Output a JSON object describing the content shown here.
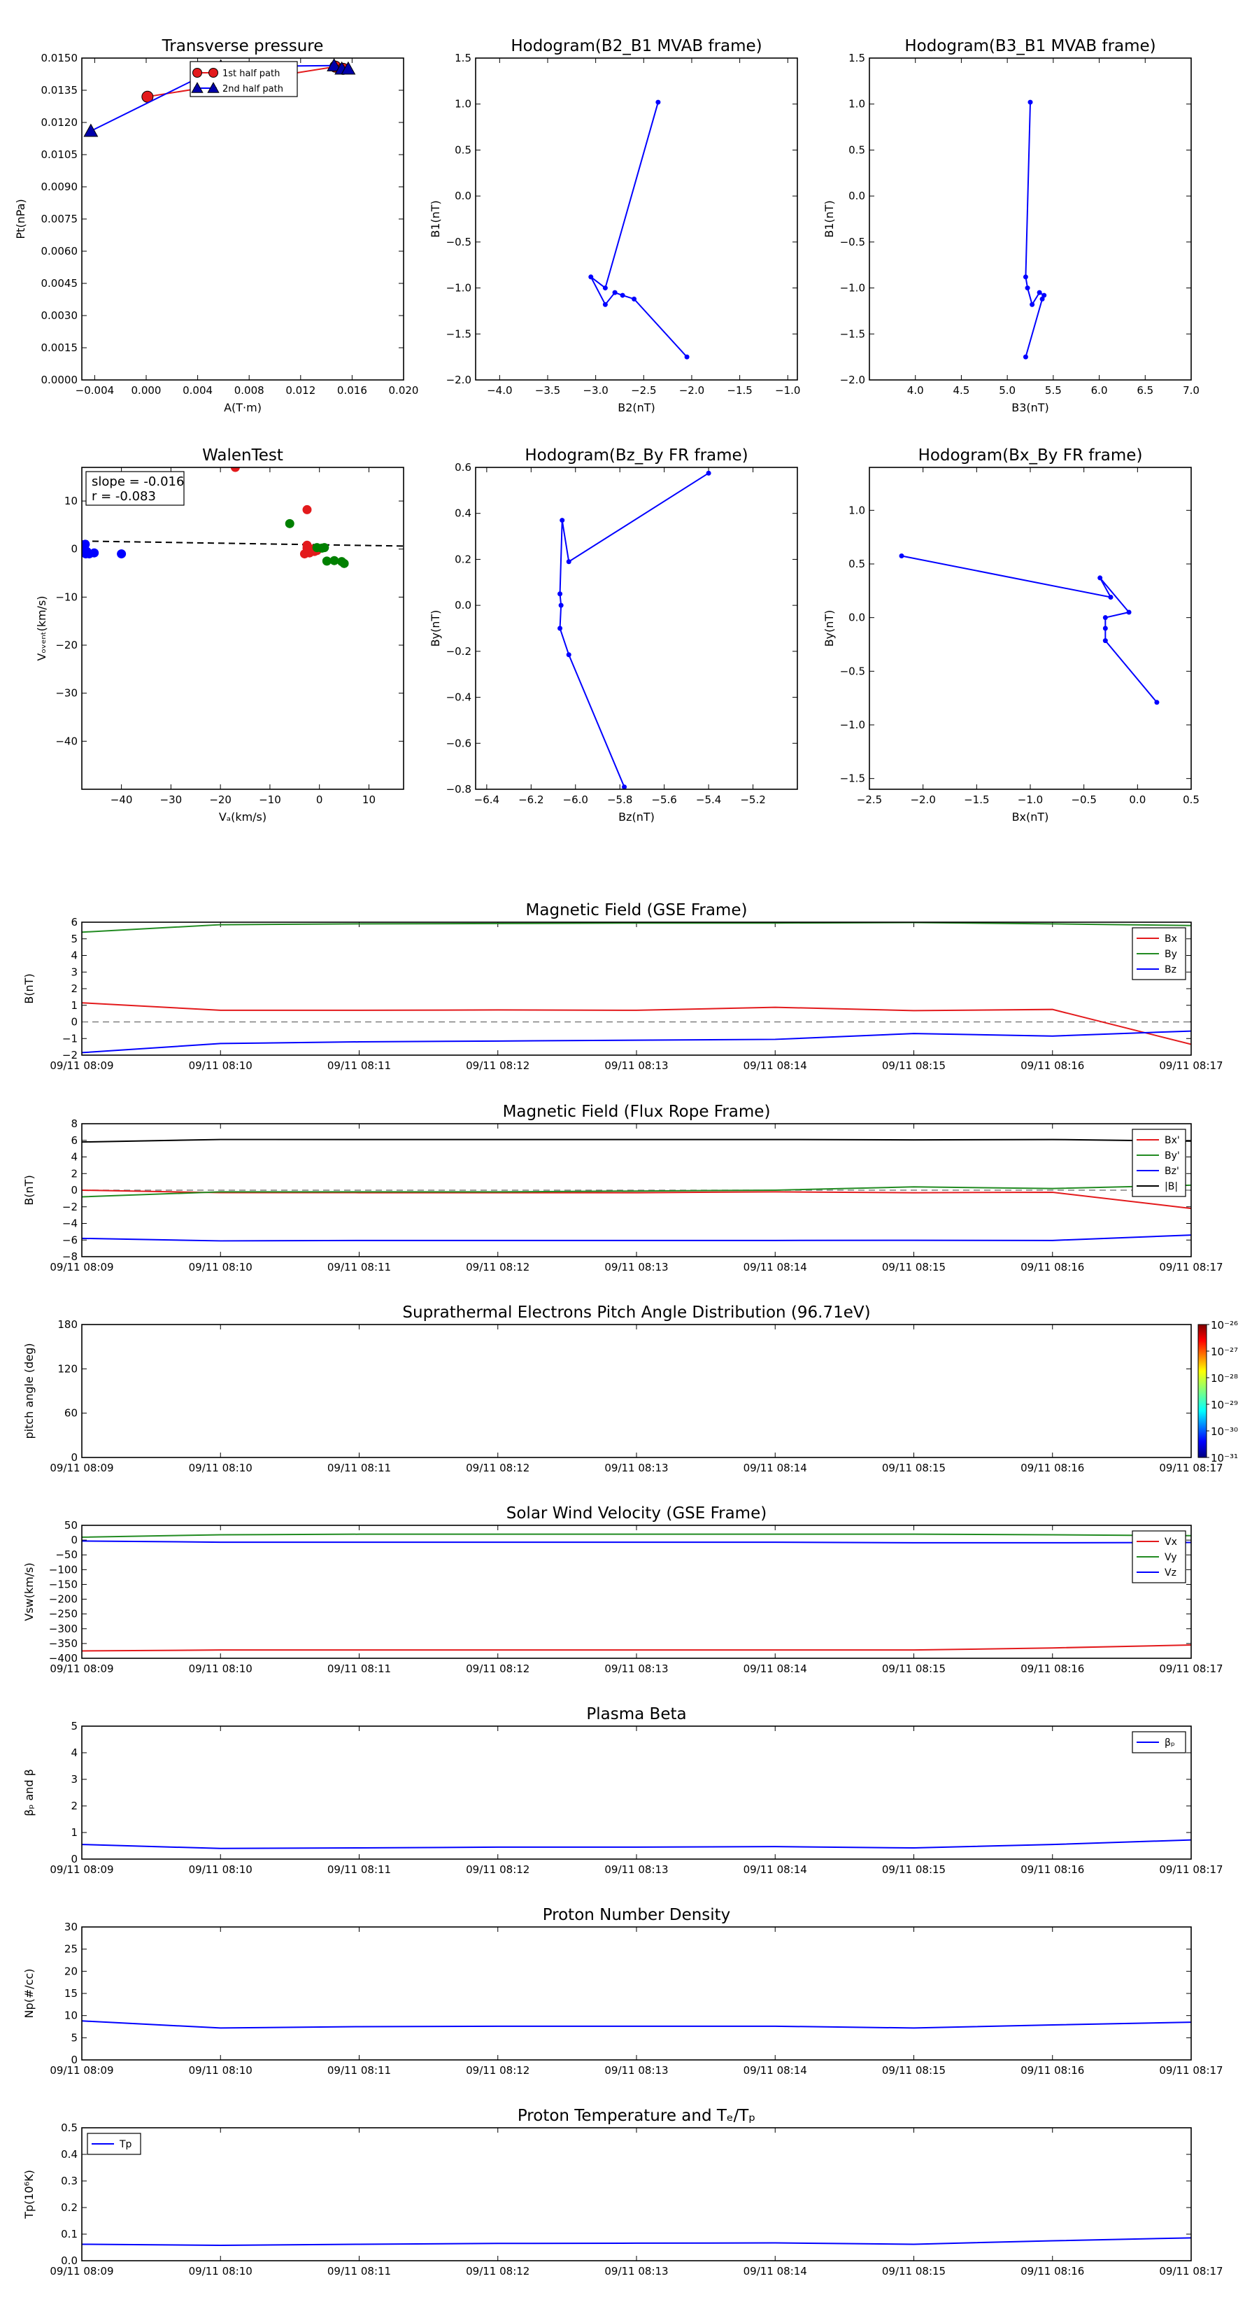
{
  "time_ticks": [
    "09/11 08:09",
    "09/11 08:10",
    "09/11 08:11",
    "09/11 08:12",
    "09/11 08:13",
    "09/11 08:14",
    "09/11 08:15",
    "09/11 08:16",
    "09/11 08:17"
  ],
  "colors": {
    "red": "#e31a1c",
    "green": "#228b22",
    "blue": "#0000ff",
    "black": "#000000",
    "darkgreen": "#008000",
    "gray": "#808080"
  },
  "chart_data": [
    {
      "type": "line",
      "title": "Transverse pressure",
      "xlabel": "A(T·m)",
      "ylabel": "Pt(nPa)",
      "xlim": [
        -0.005,
        0.02
      ],
      "ylim": [
        0.0,
        0.015
      ],
      "xticks": [
        -0.004,
        0.0,
        0.004,
        0.008,
        0.012,
        0.016,
        0.02
      ],
      "xticklabels": [
        "−0.004",
        "0.000",
        "0.004",
        "0.008",
        "0.012",
        "0.016",
        "0.020"
      ],
      "yticks": [
        0.0,
        0.0015,
        0.003,
        0.0045,
        0.006,
        0.0075,
        0.009,
        0.0105,
        0.012,
        0.0135,
        0.015
      ],
      "yticklabels": [
        "0.0000",
        "0.0015",
        "0.0030",
        "0.0045",
        "0.0060",
        "0.0075",
        "0.0090",
        "0.0105",
        "0.0120",
        "0.0135",
        "0.0150"
      ],
      "legend": "top-center",
      "series": [
        {
          "name": "1st half path",
          "color": "#e31a1c",
          "line": "#e31a1c",
          "marker": "circle",
          "x": [
            0.0001,
            0.0147,
            0.0153
          ],
          "y": [
            0.0132,
            0.0146,
            0.0145
          ]
        },
        {
          "name": "2nd half path",
          "color": "#0000aa",
          "line": "#0000ff",
          "marker": "triangle",
          "x": [
            -0.0043,
            0.0058,
            0.0146,
            0.0152,
            0.0157
          ],
          "y": [
            0.0116,
            0.0146,
            0.01465,
            0.0145,
            0.0145
          ]
        }
      ]
    },
    {
      "type": "line",
      "title": "Hodogram(B2_B1 MVAB frame)",
      "xlabel": "B2(nT)",
      "ylabel": "B1(nT)",
      "xlim": [
        -4.25,
        -0.9
      ],
      "ylim": [
        -2.0,
        1.5
      ],
      "xticks": [
        -4.0,
        -3.5,
        -3.0,
        -2.5,
        -2.0,
        -1.5,
        -1.0
      ],
      "xticklabels": [
        "−4.0",
        "−3.5",
        "−3.0",
        "−2.5",
        "−2.0",
        "−1.5",
        "−1.0"
      ],
      "yticks": [
        -2.0,
        -1.5,
        -1.0,
        -0.5,
        0.0,
        0.5,
        1.0,
        1.5
      ],
      "yticklabels": [
        "−2.0",
        "−1.5",
        "−1.0",
        "−0.5",
        "0.0",
        "0.5",
        "1.0",
        "1.5"
      ],
      "series": [
        {
          "x": [
            -2.35,
            -2.9,
            -3.05,
            -2.9,
            -2.8,
            -2.72,
            -2.6,
            -2.05
          ],
          "y": [
            1.02,
            -1.0,
            -0.88,
            -1.18,
            -1.05,
            -1.08,
            -1.12,
            -1.75
          ],
          "color": "#0000ff"
        }
      ]
    },
    {
      "type": "line",
      "title": "Hodogram(B3_B1 MVAB frame)",
      "xlabel": "B3(nT)",
      "ylabel": "B1(nT)",
      "xlim": [
        3.5,
        7.0
      ],
      "ylim": [
        -2.0,
        1.5
      ],
      "xticks": [
        4.0,
        4.5,
        5.0,
        5.5,
        6.0,
        6.5,
        7.0
      ],
      "xticklabels": [
        "4.0",
        "4.5",
        "5.0",
        "5.5",
        "6.0",
        "6.5",
        "7.0"
      ],
      "yticks": [
        -2.0,
        -1.5,
        -1.0,
        -0.5,
        0.0,
        0.5,
        1.0,
        1.5
      ],
      "yticklabels": [
        "−2.0",
        "−1.5",
        "−1.0",
        "−0.5",
        "0.0",
        "0.5",
        "1.0",
        "1.5"
      ],
      "series": [
        {
          "x": [
            5.25,
            5.2,
            5.22,
            5.27,
            5.35,
            5.4,
            5.38,
            5.2
          ],
          "y": [
            1.02,
            -0.88,
            -1.0,
            -1.18,
            -1.05,
            -1.08,
            -1.12,
            -1.75
          ],
          "color": "#0000ff"
        }
      ]
    },
    {
      "type": "scatter",
      "title": "WalenTest",
      "xlabel": "Vₐ(km/s)",
      "ylabel": "Vₒᵥₑₙₜ(km/s)",
      "xlim": [
        -48,
        17
      ],
      "ylim": [
        -50,
        17
      ],
      "xticks": [
        -40,
        -30,
        -20,
        -10,
        0,
        10
      ],
      "xticklabels": [
        "−40",
        "−30",
        "−20",
        "−10",
        "0",
        "10"
      ],
      "yticks": [
        -40,
        -30,
        -20,
        -10,
        0,
        10
      ],
      "yticklabels": [
        "−40",
        "−30",
        "−20",
        "−10",
        "0",
        "10"
      ],
      "annotation": [
        "slope = -0.016",
        "r = -0.083"
      ],
      "fit": {
        "slope": -0.016,
        "intercept": 0.9,
        "color": "#000000"
      },
      "series": [
        {
          "color": "#e31a1c",
          "x": [
            -2.5,
            -2.5,
            -1.5,
            -1,
            -0.5,
            -2,
            -3,
            -2.5,
            -17
          ],
          "y": [
            8.2,
            0.8,
            0.0,
            -0.5,
            -0.3,
            -0.8,
            -1.0,
            0.2,
            17
          ]
        },
        {
          "color": "#008000",
          "x": [
            -6,
            -0.5,
            0.5,
            1,
            1.5,
            3,
            4.5,
            5
          ],
          "y": [
            5.3,
            0.3,
            0.2,
            0.3,
            -2.5,
            -2.4,
            -2.6,
            -3.0
          ]
        },
        {
          "color": "#0000ff",
          "x": [
            -47.5,
            -47.3,
            -47.2,
            -47,
            -46.5,
            -45.5,
            -40
          ],
          "y": [
            0.5,
            1.0,
            -1.0,
            -0.5,
            -1.0,
            -0.8,
            -1.0
          ]
        }
      ]
    },
    {
      "type": "line",
      "title": "Hodogram(Bz_By FR frame)",
      "xlabel": "Bz(nT)",
      "ylabel": "By(nT)",
      "xlim": [
        -6.45,
        -5.0
      ],
      "ylim": [
        -0.8,
        0.6
      ],
      "xticks": [
        -6.4,
        -6.2,
        -6.0,
        -5.8,
        -5.6,
        -5.4,
        -5.2
      ],
      "xticklabels": [
        "−6.4",
        "−6.2",
        "−6.0",
        "−5.8",
        "−5.6",
        "−5.4",
        "−5.2"
      ],
      "yticks": [
        -0.8,
        -0.6,
        -0.4,
        -0.2,
        0.0,
        0.2,
        0.4,
        0.6
      ],
      "yticklabels": [
        "−0.8",
        "−0.6",
        "−0.4",
        "−0.2",
        "0.0",
        "0.2",
        "0.4",
        "0.6"
      ],
      "series": [
        {
          "x": [
            -5.4,
            -6.03,
            -6.06,
            -6.07,
            -6.065,
            -6.07,
            -6.03,
            -5.78
          ],
          "y": [
            0.575,
            0.19,
            0.37,
            0.05,
            0.0,
            -0.1,
            -0.215,
            -0.79
          ],
          "color": "#0000ff"
        }
      ]
    },
    {
      "type": "line",
      "title": "Hodogram(Bx_By FR frame)",
      "xlabel": "Bx(nT)",
      "ylabel": "By(nT)",
      "xlim": [
        -2.5,
        0.5
      ],
      "ylim": [
        -1.6,
        1.4
      ],
      "xticks": [
        -2.5,
        -2.0,
        -1.5,
        -1.0,
        -0.5,
        0.0,
        0.5
      ],
      "xticklabels": [
        "−2.5",
        "−2.0",
        "−1.5",
        "−1.0",
        "−0.5",
        "0.0",
        "0.5"
      ],
      "yticks": [
        -1.5,
        -1.0,
        -0.5,
        0.0,
        0.5,
        1.0
      ],
      "yticklabels": [
        "−1.5",
        "−1.0",
        "−0.5",
        "0.0",
        "0.5",
        "1.0"
      ],
      "series": [
        {
          "x": [
            -2.2,
            -0.25,
            -0.35,
            -0.08,
            -0.3,
            -0.3,
            -0.3,
            0.18
          ],
          "y": [
            0.575,
            0.19,
            0.37,
            0.05,
            0.0,
            -0.1,
            -0.215,
            -0.79
          ],
          "color": "#0000ff"
        }
      ]
    },
    {
      "type": "line",
      "title": "Magnetic Field (GSE Frame)",
      "ylabel": "B(nT)",
      "ylim": [
        -2,
        6
      ],
      "yticks": [
        -2,
        -1,
        0,
        1,
        2,
        3,
        4,
        5,
        6
      ],
      "yticklabels": [
        "−2",
        "−1",
        "0",
        "1",
        "2",
        "3",
        "4",
        "5",
        "6"
      ],
      "zero_line": true,
      "legend": "top-right",
      "series": [
        {
          "name": "Bx",
          "color": "#e31a1c",
          "x": [
            0,
            1,
            2,
            3,
            4,
            5,
            6,
            7,
            8
          ],
          "y": [
            1.15,
            0.7,
            0.7,
            0.72,
            0.7,
            0.88,
            0.68,
            0.75,
            -1.35
          ]
        },
        {
          "name": "By",
          "color": "#228b22",
          "x": [
            0,
            1,
            2,
            3,
            4,
            5,
            6,
            7,
            8
          ],
          "y": [
            5.4,
            5.85,
            5.9,
            5.92,
            5.95,
            5.95,
            5.98,
            5.9,
            5.8
          ]
        },
        {
          "name": "Bz",
          "color": "#0000ff",
          "x": [
            0,
            1,
            2,
            3,
            4,
            5,
            6,
            7,
            8
          ],
          "y": [
            -1.85,
            -1.3,
            -1.2,
            -1.15,
            -1.1,
            -1.05,
            -0.7,
            -0.85,
            -0.55
          ]
        }
      ]
    },
    {
      "type": "line",
      "title": "Magnetic Field (Flux Rope Frame)",
      "ylabel": "B(nT)",
      "ylim": [
        -8,
        8
      ],
      "yticks": [
        -8,
        -6,
        -4,
        -2,
        0,
        2,
        4,
        6,
        8
      ],
      "yticklabels": [
        "−8",
        "−6",
        "−4",
        "−2",
        "0",
        "2",
        "4",
        "6",
        "8"
      ],
      "zero_line": true,
      "legend": "top-right",
      "series": [
        {
          "name": "Bx'",
          "color": "#e31a1c",
          "x": [
            0,
            1,
            2,
            3,
            4,
            5,
            6,
            7,
            8
          ],
          "y": [
            0.0,
            -0.3,
            -0.3,
            -0.3,
            -0.3,
            -0.2,
            -0.3,
            -0.25,
            -2.2
          ]
        },
        {
          "name": "By'",
          "color": "#228b22",
          "x": [
            0,
            1,
            2,
            3,
            4,
            5,
            6,
            7,
            8
          ],
          "y": [
            -0.8,
            -0.2,
            -0.2,
            -0.2,
            -0.1,
            0.0,
            0.4,
            0.2,
            0.6
          ]
        },
        {
          "name": "Bz'",
          "color": "#0000ff",
          "x": [
            0,
            1,
            2,
            3,
            4,
            5,
            6,
            7,
            8
          ],
          "y": [
            -5.8,
            -6.1,
            -6.05,
            -6.05,
            -6.05,
            -6.05,
            -6.03,
            -6.05,
            -5.4
          ]
        },
        {
          "name": "|B|",
          "color": "#000000",
          "x": [
            0,
            1,
            2,
            3,
            4,
            5,
            6,
            7,
            8
          ],
          "y": [
            5.8,
            6.1,
            6.1,
            6.1,
            6.1,
            6.1,
            6.05,
            6.1,
            5.9
          ]
        }
      ]
    },
    {
      "type": "heatmap",
      "title": "Suprathermal Electrons Pitch Angle Distribution (96.71eV)",
      "ylabel": "pitch angle (deg)",
      "ylim": [
        0,
        180
      ],
      "yticks": [
        0,
        60,
        120,
        180
      ],
      "yticklabels": [
        "0",
        "60",
        "120",
        "180"
      ],
      "colorbar_ticks": [
        "10⁻²⁶",
        "10⁻²⁷",
        "10⁻²⁸",
        "10⁻²⁹",
        "10⁻³⁰",
        "10⁻³¹"
      ]
    },
    {
      "type": "line",
      "title": "Solar Wind Velocity (GSE Frame)",
      "ylabel": "Vsw(km/s)",
      "ylim": [
        -400,
        50
      ],
      "yticks": [
        -400,
        -350,
        -300,
        -250,
        -200,
        -150,
        -100,
        -50,
        0,
        50
      ],
      "yticklabels": [
        "−400",
        "−350",
        "−300",
        "−250",
        "−200",
        "−150",
        "−100",
        "−50",
        "0",
        "50"
      ],
      "legend": "top-right",
      "series": [
        {
          "name": "Vx",
          "color": "#e31a1c",
          "x": [
            0,
            1,
            2,
            3,
            4,
            5,
            6,
            7,
            8
          ],
          "y": [
            -375,
            -372,
            -372,
            -372,
            -372,
            -372,
            -372,
            -365,
            -355
          ]
        },
        {
          "name": "Vy",
          "color": "#228b22",
          "x": [
            0,
            1,
            2,
            3,
            4,
            5,
            6,
            7,
            8
          ],
          "y": [
            10,
            18,
            20,
            20,
            20,
            20,
            20,
            18,
            15
          ]
        },
        {
          "name": "Vz",
          "color": "#0000ff",
          "x": [
            0,
            1,
            2,
            3,
            4,
            5,
            6,
            7,
            8
          ],
          "y": [
            -3,
            -7,
            -7,
            -7,
            -7,
            -7,
            -9,
            -9,
            -8
          ]
        }
      ]
    },
    {
      "type": "line",
      "title": "Plasma Beta",
      "ylabel": "βₚ and β",
      "ylim": [
        0,
        5
      ],
      "yticks": [
        0,
        1,
        2,
        3,
        4,
        5
      ],
      "yticklabels": [
        "0",
        "1",
        "2",
        "3",
        "4",
        "5"
      ],
      "legend": "top-right",
      "series": [
        {
          "name": "βₚ",
          "color": "#0000ff",
          "x": [
            0,
            1,
            2,
            3,
            4,
            5,
            6,
            7,
            8
          ],
          "y": [
            0.55,
            0.4,
            0.42,
            0.45,
            0.45,
            0.47,
            0.42,
            0.55,
            0.72
          ]
        }
      ]
    },
    {
      "type": "line",
      "title": "Proton Number Density",
      "ylabel": "Np(#/cc)",
      "ylim": [
        0,
        30
      ],
      "yticks": [
        0,
        5,
        10,
        15,
        20,
        25,
        30
      ],
      "yticklabels": [
        "0",
        "5",
        "10",
        "15",
        "20",
        "25",
        "30"
      ],
      "series": [
        {
          "color": "#0000ff",
          "x": [
            0,
            1,
            2,
            3,
            4,
            5,
            6,
            7,
            8
          ],
          "y": [
            8.8,
            7.2,
            7.5,
            7.6,
            7.6,
            7.6,
            7.2,
            7.9,
            8.5
          ]
        }
      ]
    },
    {
      "type": "line",
      "title": "Proton Temperature and Tₑ/Tₚ",
      "ylabel": "Tp(10⁶K)",
      "ylim": [
        0,
        0.5
      ],
      "yticks": [
        0,
        0.1,
        0.2,
        0.3,
        0.4,
        0.5
      ],
      "yticklabels": [
        "0.0",
        "0.1",
        "0.2",
        "0.3",
        "0.4",
        "0.5"
      ],
      "legend": "top-left",
      "series": [
        {
          "name": "Tp",
          "color": "#0000ff",
          "x": [
            0,
            1,
            2,
            3,
            4,
            5,
            6,
            7,
            8
          ],
          "y": [
            0.062,
            0.058,
            0.062,
            0.065,
            0.066,
            0.067,
            0.062,
            0.075,
            0.086
          ]
        }
      ]
    }
  ]
}
